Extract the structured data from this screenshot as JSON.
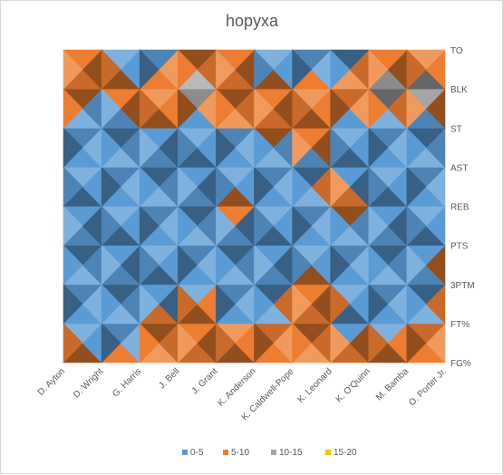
{
  "colors": {
    "0-5": "#5b9bd5",
    "5-10": "#ed7d31",
    "10-15": "#a5a5a5",
    "15-20": "#ffc000"
  },
  "chart_data": {
    "type": "surface",
    "title": "hopyxa",
    "categories": [
      "D. Ayton",
      "D. Wright",
      "G. Harris",
      "J. Bell",
      "J. Grant",
      "K. Anderson",
      "K. Caldwell-Pope",
      "K. Leonard",
      "K. O'Quinn",
      "M. Bamba",
      "O. Porter Jr."
    ],
    "series_names": [
      "FG%",
      "FT%",
      "3PTM",
      "PTS",
      "REB",
      "AST",
      "ST",
      "BLK",
      "TO"
    ],
    "legend": [
      "0-5",
      "5-10",
      "10-15",
      "15-20"
    ],
    "band_step": 5,
    "z_range": [
      0,
      20
    ],
    "legend_position": "bottom",
    "values": [
      [
        8,
        7,
        6,
        9,
        8,
        7,
        8,
        6,
        9,
        8,
        7
      ],
      [
        6,
        2,
        3,
        8,
        7,
        3,
        6,
        4,
        3,
        2,
        7
      ],
      [
        3,
        1,
        5,
        2,
        3,
        4,
        6,
        7,
        2,
        4,
        6
      ],
      [
        2,
        4,
        3,
        1,
        2,
        1,
        3,
        2,
        1,
        2,
        5
      ],
      [
        6,
        2,
        1,
        3,
        4,
        9,
        2,
        8,
        4,
        2,
        6
      ],
      [
        2,
        3,
        4,
        1,
        2,
        1,
        3,
        6,
        3,
        2,
        1
      ],
      [
        3,
        2,
        6,
        3,
        3,
        6,
        7,
        4,
        2,
        3,
        2
      ],
      [
        11,
        6,
        5,
        12,
        13,
        6,
        7,
        6,
        12,
        13,
        11
      ],
      [
        2,
        7,
        1,
        6,
        7,
        2,
        3,
        2,
        6,
        7,
        5
      ]
    ]
  }
}
